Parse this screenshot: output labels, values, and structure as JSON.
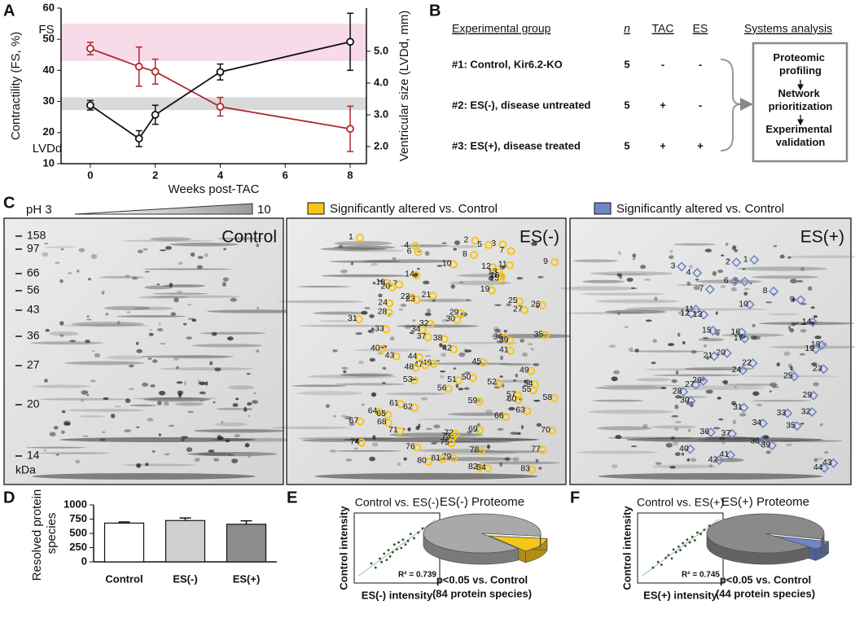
{
  "panel_labels": [
    "A",
    "B",
    "C",
    "D",
    "E",
    "F"
  ],
  "chart_data": [
    {
      "type": "line",
      "x": [
        0,
        1.5,
        2,
        4,
        8
      ],
      "xlabel": "Weeks post-TAC",
      "ylabel": "Contractility (FS, %)",
      "y2label": "Ventricular size (LVDd, mm)",
      "xlim": [
        -0.9,
        8.5
      ],
      "xticks": [
        0,
        2,
        4,
        6,
        8
      ],
      "ylim": [
        10,
        60
      ],
      "yticks": [
        10,
        20,
        30,
        40,
        50,
        60
      ],
      "y2lim": [
        1.46,
        6.36
      ],
      "y2ticks": [
        {
          "value": 2,
          "label": "2.0"
        },
        {
          "value": 3,
          "label": "3.0"
        },
        {
          "value": 4,
          "label": "4.0"
        },
        {
          "value": 5,
          "label": "5.0"
        }
      ],
      "bands": [
        {
          "axis": "y",
          "range": [
            43,
            55
          ],
          "color": "#f8dbe9"
        },
        {
          "axis": "y2",
          "range": [
            3.15,
            3.55
          ],
          "color": "#d9d9d9"
        }
      ],
      "series": [
        {
          "name": "FS",
          "color": "#b0282c",
          "values": [
            47,
            41.2,
            39.6,
            28.3,
            21.2
          ],
          "errors": [
            2,
            6.3,
            4,
            3,
            7.3
          ]
        },
        {
          "name": "LVDd",
          "color": "#111111",
          "axis": "y2",
          "values": [
            3.3,
            2.25,
            3,
            4.35,
            5.3
          ],
          "errors": [
            0.15,
            0.25,
            0.3,
            0.25,
            0.9
          ]
        }
      ]
    },
    {
      "type": "bar",
      "ylabel": "Resolved protein species",
      "categories": [
        "Control",
        "ES(-)",
        "ES(+)"
      ],
      "values": [
        680,
        725,
        660
      ],
      "errors": [
        20,
        45,
        60
      ],
      "colors": [
        "#ffffff",
        "#cfcfcf",
        "#8c8c8c"
      ],
      "ylim": [
        0,
        1000
      ],
      "yticks": [
        0,
        250,
        500,
        750,
        1000
      ]
    },
    {
      "type": "scatter",
      "title": "Control vs. ES(-)",
      "xlabel": "ES(-) intensity",
      "ylabel": "Control intensity",
      "annotation": "R² = 0.739",
      "color": "#444444",
      "fit_color": "#9ad49a",
      "xlim": [
        0,
        100
      ],
      "ylim": [
        0,
        100
      ],
      "x": [
        20,
        25,
        30,
        32,
        35,
        38,
        40,
        42,
        45,
        47,
        50,
        52,
        55,
        57,
        60,
        63,
        66,
        70,
        75,
        80
      ],
      "values": [
        28,
        22,
        35,
        30,
        42,
        33,
        47,
        38,
        44,
        55,
        48,
        58,
        50,
        62,
        55,
        60,
        70,
        64,
        72,
        78
      ]
    },
    {
      "type": "pie",
      "title": "ES(-) Proteome",
      "categories": [
        "p<0.05 vs. Control",
        null
      ],
      "note": "(84 protein species)",
      "values": [
        12,
        88
      ],
      "colors": [
        "#f5c518",
        "#a9a9a9"
      ]
    },
    {
      "type": "scatter",
      "title": "Control vs. ES(+)",
      "xlabel": "ES(+) intensity",
      "ylabel": "Control intensity",
      "annotation": "R² = 0.745",
      "color": "#444444",
      "fit_color": "#9ad49a",
      "xlim": [
        0,
        100
      ],
      "ylim": [
        0,
        100
      ],
      "x": [
        18,
        24,
        28,
        33,
        36,
        40,
        42,
        45,
        48,
        50,
        53,
        56,
        58,
        61,
        64,
        67,
        70,
        74,
        78,
        84
      ],
      "values": [
        22,
        30,
        26,
        36,
        40,
        35,
        48,
        44,
        52,
        47,
        57,
        53,
        62,
        58,
        66,
        61,
        72,
        70,
        76,
        82
      ]
    },
    {
      "type": "pie",
      "title": "ES(+) Proteome",
      "categories": [
        "p<0.05 vs. Control",
        null
      ],
      "note": "(44 protein species)",
      "values": [
        7,
        93
      ],
      "colors": [
        "#6f86c8",
        "#8a8a8a"
      ]
    }
  ],
  "experimental_design": {
    "headers": [
      "Experimental group",
      "n",
      "TAC",
      "ES",
      "Systems analysis"
    ],
    "rows": [
      [
        "#1: Control, Kir6.2-KO",
        "5",
        "-",
        "-"
      ],
      [
        "#2: ES(-), disease untreated",
        "5",
        "+",
        "-"
      ],
      [
        "#3: ES(+), disease treated",
        "5",
        "+",
        "+"
      ]
    ],
    "systems_analysis": [
      "Proteomic profiling",
      "Network prioritization",
      "Experimental validation"
    ]
  },
  "gels": {
    "ph_scale": [
      "pH 3",
      "10"
    ],
    "legends": [
      {
        "text": "Significantly altered vs. Control",
        "color": "#f5c518"
      },
      {
        "text": "Significantly altered vs. Control",
        "color": "#6f86c8"
      }
    ],
    "panels": [
      {
        "title": "Control",
        "mw_markers": [
          158,
          97,
          66,
          56,
          43,
          36,
          27,
          20,
          14
        ],
        "unit": "kDa"
      },
      {
        "title": "ES(-)",
        "spots": [
          1,
          2,
          3,
          4,
          5,
          6,
          7,
          8,
          9,
          10,
          11,
          12,
          13,
          14,
          15,
          16,
          17,
          18,
          19,
          20,
          21,
          22,
          23,
          24,
          25,
          26,
          27,
          28,
          29,
          30,
          31,
          32,
          33,
          34,
          35,
          36,
          37,
          38,
          39,
          40,
          41,
          42,
          43,
          44,
          45,
          46,
          47,
          48,
          49,
          50,
          51,
          52,
          53,
          54,
          55,
          56,
          57,
          58,
          59,
          60,
          61,
          62,
          63,
          64,
          65,
          66,
          67,
          68,
          69,
          70,
          71,
          72,
          73,
          74,
          75,
          76,
          77,
          78,
          79,
          80,
          81,
          82,
          83,
          84
        ]
      },
      {
        "title": "ES(+)",
        "spots": [
          1,
          2,
          3,
          4,
          5,
          6,
          7,
          8,
          9,
          10,
          11,
          12,
          13,
          14,
          15,
          16,
          17,
          18,
          19,
          20,
          21,
          22,
          23,
          24,
          25,
          26,
          27,
          28,
          29,
          30,
          31,
          32,
          33,
          34,
          35,
          36,
          37,
          38,
          39,
          40,
          41,
          42,
          43,
          44
        ]
      }
    ]
  }
}
